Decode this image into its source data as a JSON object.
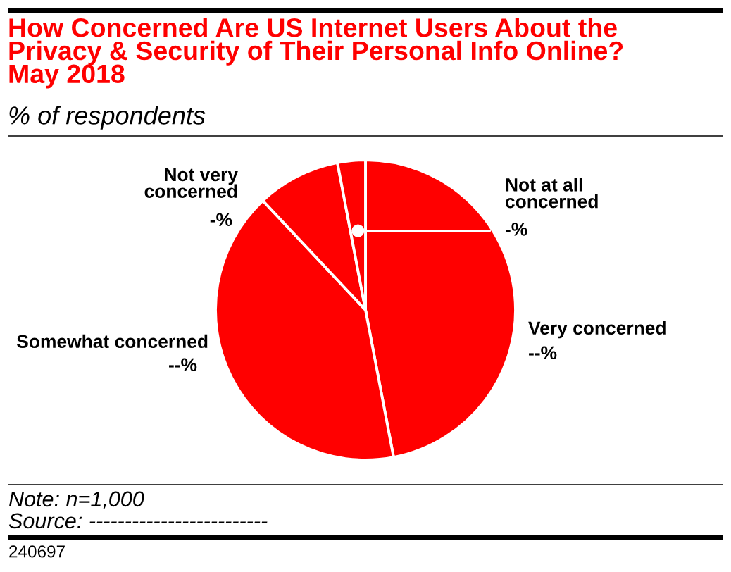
{
  "chart_data": {
    "type": "pie",
    "title": "How Concerned Are US Internet Users About the\nPrivacy & Security of Their Personal Info Online?\nMay 2018",
    "subtitle": "% of respondents",
    "categories": [
      "Very concerned",
      "Somewhat concerned",
      "Not very\nconcerned",
      "Not at all\nconcerned"
    ],
    "values": [
      47,
      41,
      9,
      3
    ],
    "colors": [
      "#ff0000",
      "#ff0000",
      "#ff0000",
      "#ff0000"
    ],
    "value_labels": [
      "--%",
      "--%",
      "-%",
      "-%"
    ],
    "annotations": [
      "Note: n=1,000",
      "Source: -------------------------",
      "240697"
    ]
  }
}
